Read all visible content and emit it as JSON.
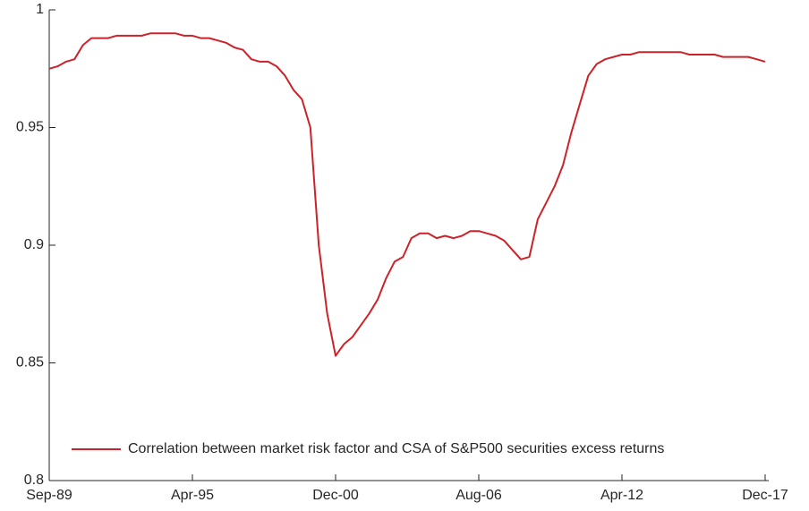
{
  "chart_data": {
    "type": "line",
    "categories": [
      "Sep-89",
      null,
      null,
      null,
      null,
      null,
      null,
      null,
      null,
      null,
      null,
      null,
      null,
      null,
      null,
      null,
      null,
      "Apr-95",
      null,
      null,
      null,
      null,
      null,
      null,
      null,
      null,
      null,
      null,
      null,
      null,
      null,
      null,
      null,
      null,
      "Dec-00",
      null,
      null,
      null,
      null,
      null,
      null,
      null,
      null,
      null,
      null,
      null,
      null,
      null,
      null,
      null,
      null,
      "Aug-06",
      null,
      null,
      null,
      null,
      null,
      null,
      null,
      null,
      null,
      null,
      null,
      null,
      null,
      null,
      null,
      null,
      "Apr-12",
      null,
      null,
      null,
      null,
      null,
      null,
      null,
      null,
      null,
      null,
      null,
      null,
      null,
      null,
      null,
      null,
      "Dec-17"
    ],
    "series": [
      {
        "name": "Correlation between market risk factor and CSA of S&P500 securities excess returns",
        "color": "#cc2229",
        "values": [
          0.975,
          0.976,
          0.978,
          0.979,
          0.985,
          0.988,
          0.988,
          0.988,
          0.989,
          0.989,
          0.989,
          0.989,
          0.99,
          0.99,
          0.99,
          0.99,
          0.989,
          0.989,
          0.988,
          0.988,
          0.987,
          0.986,
          0.984,
          0.983,
          0.979,
          0.978,
          0.978,
          0.976,
          0.972,
          0.966,
          0.962,
          0.95,
          0.9,
          0.871,
          0.853,
          0.858,
          0.861,
          0.866,
          0.871,
          0.877,
          0.886,
          0.893,
          0.895,
          0.903,
          0.905,
          0.905,
          0.903,
          0.904,
          0.903,
          0.904,
          0.906,
          0.906,
          0.905,
          0.904,
          0.902,
          0.898,
          0.894,
          0.895,
          0.911,
          0.918,
          0.925,
          0.934,
          0.948,
          0.96,
          0.972,
          0.977,
          0.979,
          0.98,
          0.981,
          0.981,
          0.982,
          0.982,
          0.982,
          0.982,
          0.982,
          0.982,
          0.981,
          0.981,
          0.981,
          0.981,
          0.98,
          0.98,
          0.98,
          0.98,
          0.979,
          0.978
        ]
      }
    ],
    "ylim": [
      0.8,
      1
    ],
    "yticks": [
      0.8,
      0.85,
      0.9,
      0.95,
      1
    ],
    "grid": false,
    "legend": "bottom-right"
  }
}
